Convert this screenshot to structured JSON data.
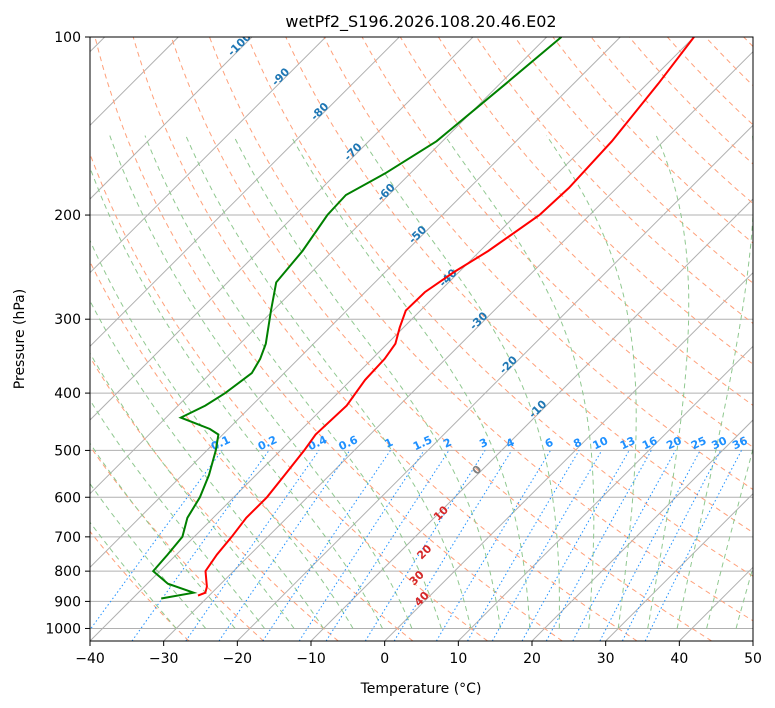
{
  "chart_data": {
    "type": "line",
    "title": "wetPf2_S196.2026.108.20.46.E02",
    "xlabel": "Temperature (°C)",
    "ylabel": "Pressure (hPa)",
    "xlim": [
      -40,
      50
    ],
    "ylim": [
      1050,
      100
    ],
    "y_scale": "log",
    "grid": true,
    "x_ticks": [
      "-40",
      "-30",
      "-20",
      "-10",
      "0",
      "10",
      "20",
      "30",
      "40",
      "50"
    ],
    "y_ticks": [
      "100",
      "200",
      "300",
      "400",
      "500",
      "600",
      "700",
      "800",
      "900",
      "1000"
    ],
    "series": [
      {
        "color": "#ff0000",
        "pressure": [
          100,
          120,
          150,
          180,
          200,
          230,
          250,
          270,
          290,
          310,
          330,
          350,
          380,
          420,
          470,
          500,
          550,
          600,
          650,
          700,
          750,
          800,
          850,
          870,
          880
        ],
        "temperature": [
          -40,
          -38.5,
          -37,
          -36.5,
          -36.8,
          -38.9,
          -40.7,
          -41.9,
          -42,
          -40.5,
          -38.9,
          -38.3,
          -38.1,
          -37.1,
          -37.4,
          -36.8,
          -36.1,
          -35.5,
          -35.5,
          -34.9,
          -34.5,
          -33.8,
          -31.5,
          -30.9,
          -31.5
        ]
      },
      {
        "color": "#008000",
        "pressure": [
          100,
          120,
          150,
          170,
          185,
          200,
          230,
          260,
          290,
          330,
          350,
          370,
          400,
          420,
          440,
          460,
          470,
          500,
          550,
          600,
          650,
          700,
          750,
          800,
          840,
          870,
          890
        ],
        "temperature": [
          -58,
          -59.2,
          -60.8,
          -63.4,
          -65.8,
          -65.6,
          -64.1,
          -63.4,
          -60.3,
          -56.5,
          -55.2,
          -54.4,
          -55.3,
          -56.3,
          -58,
          -52.5,
          -50.6,
          -48.8,
          -46.4,
          -44.6,
          -43.5,
          -41.6,
          -41.2,
          -40.9,
          -37.2,
          -32.5,
          -36.1
        ]
      }
    ],
    "isotherm_labels": [
      "-100",
      "-90",
      "-80",
      "-70",
      "-60",
      "-50",
      "-40",
      "-30",
      "-20",
      "-10"
    ],
    "mixing_ratio_labels": [
      "0.1",
      "0.2",
      "0.4",
      "0.6",
      "1",
      "1.5",
      "2",
      "3",
      "4",
      "6",
      "8",
      "10",
      "13",
      "16",
      "20",
      "25",
      "30",
      "36"
    ],
    "moist_adiabat_labels": [
      "0",
      "10",
      "20",
      "30",
      "40"
    ],
    "colors": {
      "isotherm_label": "#1f77b4",
      "mixing_ratio": "#1e90ff",
      "moist_adiabat_label": "#d62728",
      "zero_label": "#808080",
      "dry_adiabat": "#ffa07a",
      "moist_adiabat": "#90c890",
      "grid": "#b0b0b0"
    }
  }
}
